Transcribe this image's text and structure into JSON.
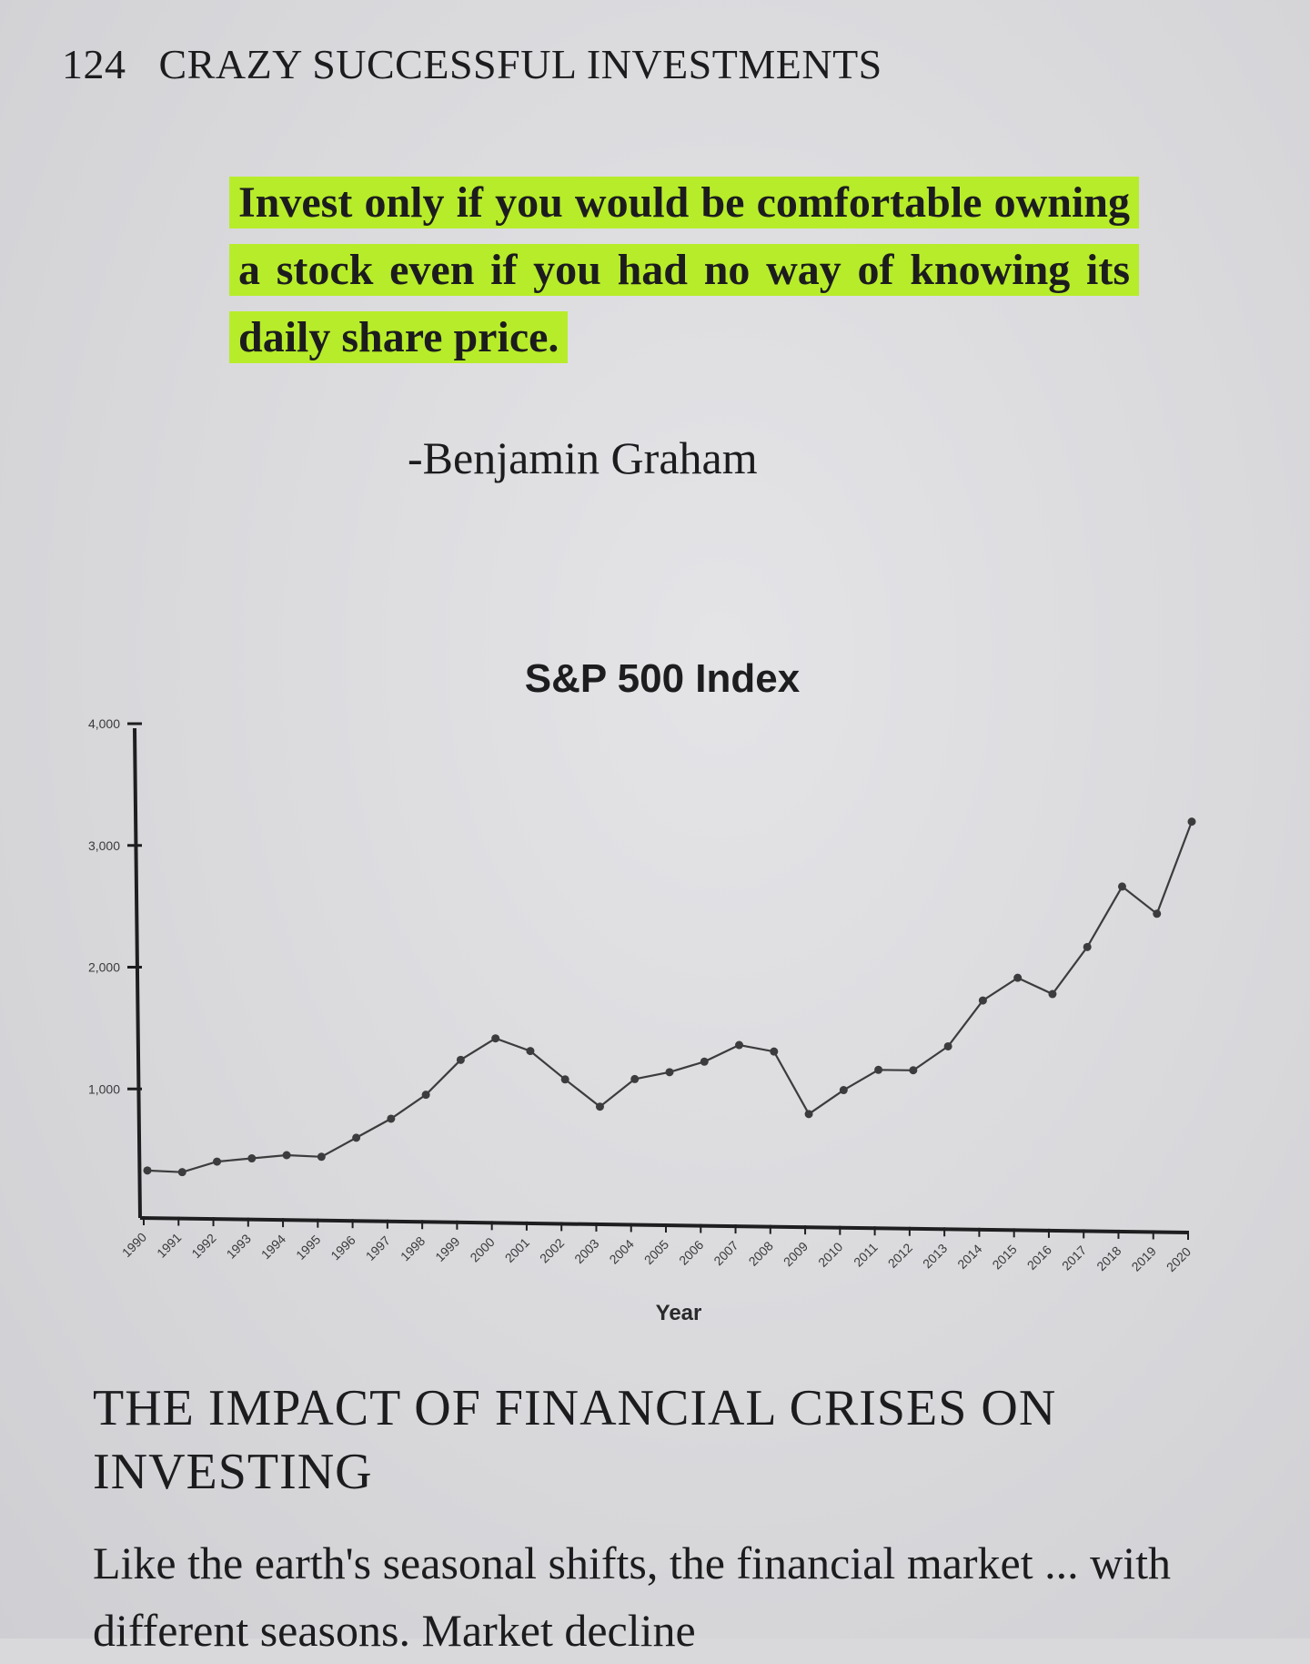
{
  "header": {
    "page_number": "124",
    "running_title": "CRAZY SUCCESSFUL INVESTMENTS"
  },
  "quote": {
    "text": "Invest only if you would be comfortable owning a stock even if you had no way of knowing its daily share price.",
    "attribution": "-Benjamin Graham",
    "highlight_color": "#b7ec2a"
  },
  "chart_data": {
    "type": "line",
    "title": "S&P 500 Index",
    "xlabel": "Year",
    "ylabel": "",
    "ylim": [
      0,
      4000
    ],
    "yticks": [
      "1,000",
      "2,000",
      "3,000",
      "4,000"
    ],
    "ytick_values": [
      1000,
      2000,
      3000,
      4000
    ],
    "categories": [
      "1990",
      "1991",
      "1992",
      "1993",
      "1994",
      "1995",
      "1996",
      "1997",
      "1998",
      "1999",
      "2000",
      "2001",
      "2002",
      "2003",
      "2004",
      "2005",
      "2006",
      "2007",
      "2008",
      "2009",
      "2010",
      "2011",
      "2012",
      "2013",
      "2014",
      "2015",
      "2016",
      "2017",
      "2018",
      "2019",
      "2020"
    ],
    "values": [
      330,
      320,
      410,
      440,
      470,
      460,
      620,
      780,
      980,
      1270,
      1450,
      1350,
      1120,
      900,
      1130,
      1190,
      1280,
      1420,
      1370,
      860,
      1060,
      1230,
      1230,
      1430,
      1810,
      2000,
      1870,
      2260,
      2760,
      2540,
      3300
    ],
    "grid": false,
    "legend": "none"
  },
  "section": {
    "title": "THE IMPACT OF FINANCIAL CRISES ON INVESTING"
  },
  "body": {
    "text": "Like the earth's seasonal shifts, the financial market ... with different seasons. Market decline"
  }
}
